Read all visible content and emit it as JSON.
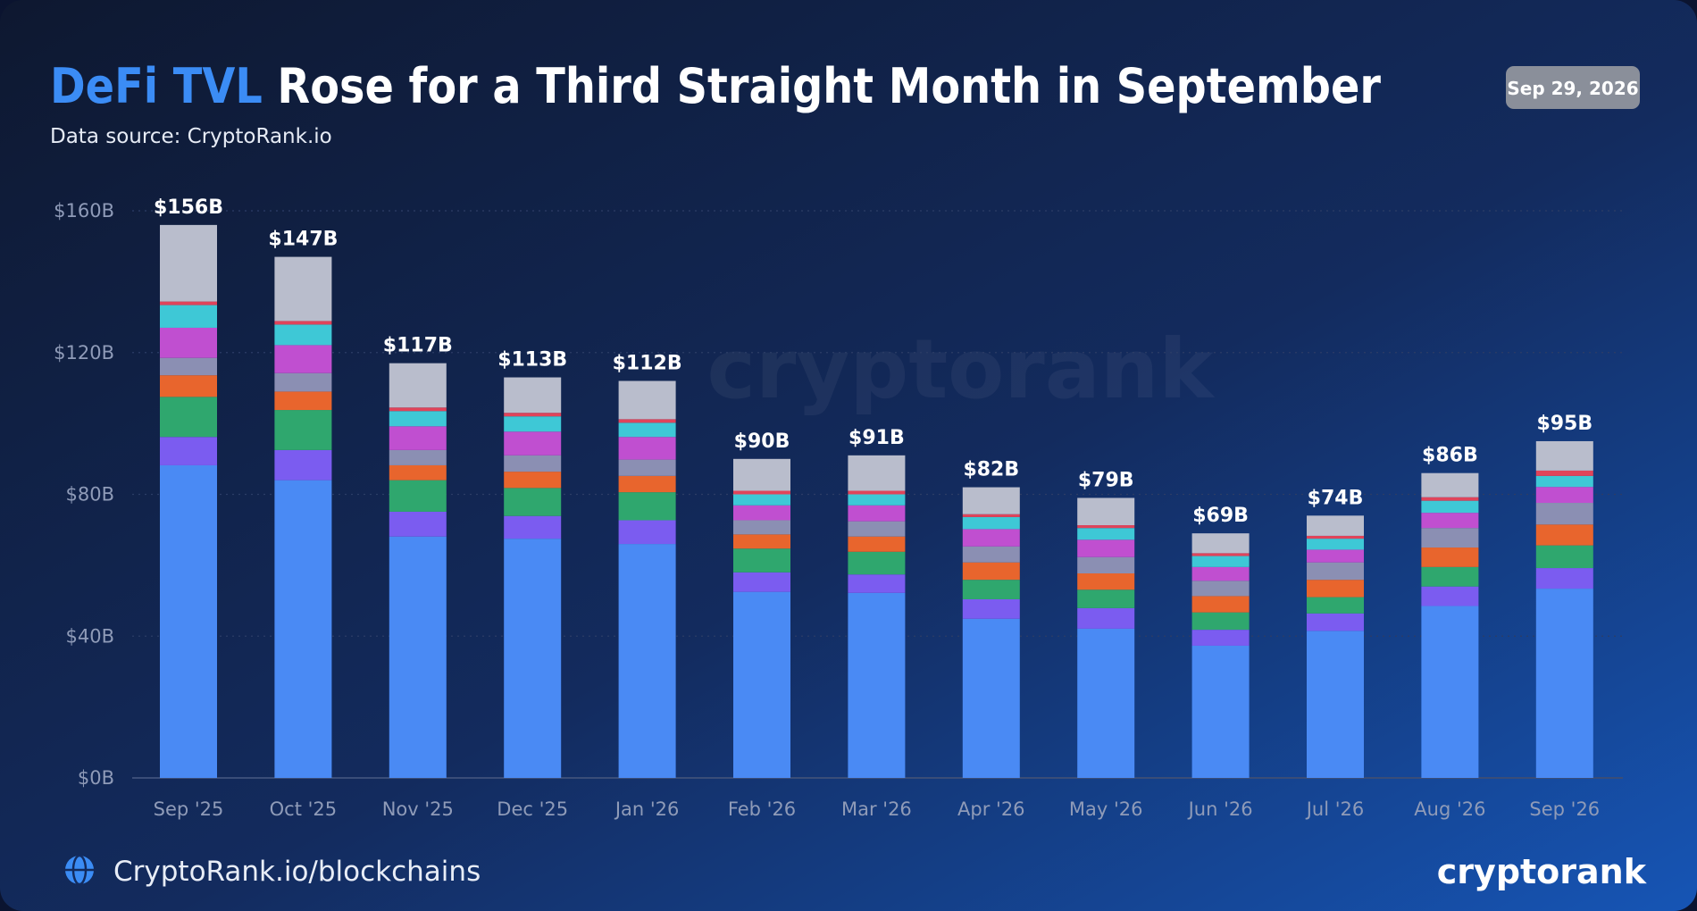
{
  "title_highlight": "DeFi TVL",
  "date_badge": "Sep 29, 2026",
  "watermark": "cryptorank",
  "footer_link": "CryptoRank.io/blockchains",
  "brand": "cryptorank",
  "chart_data": {
    "type": "stacked_bar",
    "title": "Rose for a Third Straight Month in September",
    "subtitle": "Data source: CryptoRank.io",
    "categories": [
      "Sep '25",
      "Oct '25",
      "Nov '25",
      "Dec '25",
      "Jan '26",
      "Feb '26",
      "Mar '26",
      "Apr '26",
      "May '26",
      "Jun '26",
      "Jul '26",
      "Aug '26",
      "Sep '26"
    ],
    "series": [
      {
        "color": "#4a8af4",
        "values": [
          88.2,
          84,
          68.1,
          67.5,
          66,
          52.5,
          52.2,
          44.9,
          42.1,
          37.3,
          41.5,
          48.5,
          53.4
        ]
      },
      {
        "color": "#7b5cf0",
        "values": [
          8,
          8.5,
          7,
          6.4,
          6.7,
          5.5,
          5.2,
          5.5,
          5.8,
          4.5,
          4.9,
          5.5,
          5.8
        ]
      },
      {
        "color": "#2fa76e",
        "values": [
          11.3,
          11.3,
          8.9,
          7.9,
          7.9,
          6.7,
          6.4,
          5.5,
          5.2,
          4.9,
          4.6,
          5.5,
          6.4
        ]
      },
      {
        "color": "#e8652d",
        "values": [
          6.1,
          5.2,
          4.2,
          4.6,
          4.6,
          4,
          4.3,
          4.9,
          4.6,
          4.6,
          4.9,
          5.5,
          5.9
        ]
      },
      {
        "color": "#8b8fb3",
        "values": [
          4.9,
          5.2,
          4.3,
          4.6,
          4.6,
          4,
          4.3,
          4.5,
          4.6,
          4.3,
          4.9,
          5.5,
          6.1
        ]
      },
      {
        "color": "#c04fd0",
        "values": [
          8.5,
          7.9,
          6.7,
          6.7,
          6.4,
          4.2,
          4.5,
          4.9,
          4.9,
          3.9,
          3.6,
          4.3,
          4.5
        ]
      },
      {
        "color": "#3ec8d6",
        "values": [
          6.4,
          5.8,
          4.3,
          4.3,
          4,
          3.1,
          3.1,
          3.4,
          3.3,
          3.1,
          3.1,
          3.4,
          3.1
        ]
      },
      {
        "color": "#e0445a",
        "values": [
          1,
          1,
          1,
          1,
          1,
          1,
          1,
          0.8,
          0.8,
          0.8,
          0.8,
          1,
          1.5
        ]
      },
      {
        "color": "#b9bdcc",
        "values": [
          21.6,
          18.1,
          12.5,
          10,
          10.8,
          9,
          10,
          7.6,
          7.7,
          5.6,
          5.7,
          6.8,
          8.3
        ]
      }
    ],
    "totals": {
      "values": [
        156,
        147,
        117,
        113,
        112,
        90,
        91,
        82,
        79,
        69,
        74,
        86,
        95
      ],
      "value_labels": [
        "$156B",
        "$147B",
        "$117B",
        "$113B",
        "$112B",
        "$90B",
        "$91B",
        "$82B",
        "$79B",
        "$69B",
        "$74B",
        "$86B",
        "$95B"
      ]
    },
    "ylim": [
      0,
      160
    ],
    "yticks": [
      {
        "value": 0,
        "label": "$0B"
      },
      {
        "value": 40,
        "label": "$40B"
      },
      {
        "value": 80,
        "label": "$80B"
      },
      {
        "value": 120,
        "label": "$120B"
      },
      {
        "value": 160,
        "label": "$160B"
      }
    ],
    "grid": true
  }
}
